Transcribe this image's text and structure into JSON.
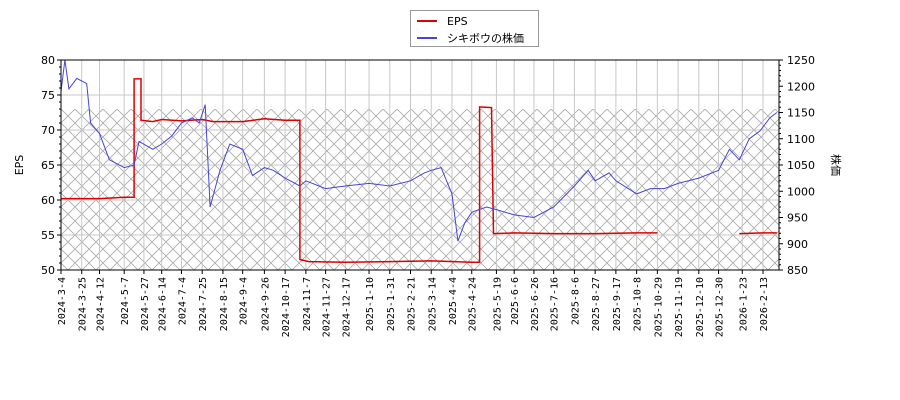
{
  "legend": {
    "items": [
      {
        "label": "EPS",
        "color": "#dd0000"
      },
      {
        "label": "シキボウの株価",
        "color": "#4444dd"
      }
    ]
  },
  "axes": {
    "left_title": "EPS",
    "right_title": "株価",
    "left_ticks": [
      "80",
      "75",
      "70",
      "65",
      "60",
      "55",
      "50"
    ],
    "right_ticks": [
      "1250",
      "1200",
      "1150",
      "1100",
      "1050",
      "1000",
      "950",
      "900",
      "850"
    ]
  },
  "chart_data": {
    "type": "line",
    "title": "",
    "xlabel": "",
    "ylabel": "EPS",
    "ylabel_right": "株価",
    "ylim": [
      50,
      80
    ],
    "ylim_right": [
      850,
      1250
    ],
    "grid": true,
    "legend_position": "top-center",
    "x_tick_labels": [
      "2024-3-4",
      "2024-3-25",
      "2024-4-12",
      "2024-5-7",
      "2024-5-27",
      "2024-6-14",
      "2024-7-4",
      "2024-7-25",
      "2024-8-15",
      "2024-9-4",
      "2024-9-26",
      "2024-10-17",
      "2024-11-7",
      "2024-11-27",
      "2024-12-17",
      "2025-1-10",
      "2025-1-31",
      "2025-2-21",
      "2025-3-14",
      "2025-4-4",
      "2025-4-24",
      "2025-5-19",
      "2025-6-6",
      "2025-6-26",
      "2025-7-16",
      "2025-8-6",
      "2025-8-27",
      "2025-9-17",
      "2025-10-8",
      "2025-10-29",
      "2025-11-19",
      "2025-12-10",
      "2025-12-30",
      "2026-1-23",
      "2026-2-13"
    ],
    "series": [
      {
        "name": "EPS",
        "axis": "left",
        "color": "#dd0000",
        "points": [
          [
            "2024-3-4",
            60.2
          ],
          [
            "2024-4-12",
            60.2
          ],
          [
            "2024-5-7",
            60.4
          ],
          [
            "2024-5-17",
            60.4
          ],
          [
            "2024-5-17",
            77.3
          ],
          [
            "2024-5-24",
            77.3
          ],
          [
            "2024-5-24",
            71.4
          ],
          [
            "2024-6-5",
            71.2
          ],
          [
            "2024-6-14",
            71.5
          ],
          [
            "2024-7-4",
            71.3
          ],
          [
            "2024-7-25",
            71.5
          ],
          [
            "2024-8-5",
            71.2
          ],
          [
            "2024-9-4",
            71.2
          ],
          [
            "2024-9-26",
            71.6
          ],
          [
            "2024-10-17",
            71.4
          ],
          [
            "2024-11-1",
            71.4
          ],
          [
            "2024-11-1",
            51.5
          ],
          [
            "2024-11-10",
            51.2
          ],
          [
            "2024-12-17",
            51.1
          ],
          [
            "2025-1-31",
            51.2
          ],
          [
            "2025-3-14",
            51.3
          ],
          [
            "2025-4-24",
            51.1
          ],
          [
            "2025-5-2",
            51.1
          ],
          [
            "2025-5-2",
            73.3
          ],
          [
            "2025-5-14",
            73.2
          ],
          [
            "2025-5-16",
            55.2
          ],
          [
            "2025-6-6",
            55.3
          ],
          [
            "2025-7-16",
            55.2
          ],
          [
            "2025-8-27",
            55.2
          ],
          [
            "2025-10-8",
            55.3
          ],
          [
            "2025-10-29",
            55.3
          ],
          [
            "2026-1-20",
            55.2
          ],
          [
            "2026-2-13",
            55.3
          ],
          [
            "2026-2-27",
            55.3
          ]
        ]
      },
      {
        "name": "シキボウの株価",
        "axis": "right",
        "color": "#4444dd",
        "points": [
          [
            "2024-3-4",
            1190
          ],
          [
            "2024-3-8",
            1250
          ],
          [
            "2024-3-12",
            1195
          ],
          [
            "2024-3-20",
            1215
          ],
          [
            "2024-3-30",
            1205
          ],
          [
            "2024-4-3",
            1130
          ],
          [
            "2024-4-12",
            1110
          ],
          [
            "2024-4-22",
            1060
          ],
          [
            "2024-5-7",
            1045
          ],
          [
            "2024-5-17",
            1050
          ],
          [
            "2024-5-22",
            1095
          ],
          [
            "2024-6-5",
            1080
          ],
          [
            "2024-6-14",
            1090
          ],
          [
            "2024-6-24",
            1105
          ],
          [
            "2024-7-4",
            1130
          ],
          [
            "2024-7-15",
            1140
          ],
          [
            "2024-7-22",
            1130
          ],
          [
            "2024-7-28",
            1165
          ],
          [
            "2024-8-2",
            970
          ],
          [
            "2024-8-12",
            1040
          ],
          [
            "2024-8-22",
            1090
          ],
          [
            "2024-9-4",
            1080
          ],
          [
            "2024-9-14",
            1030
          ],
          [
            "2024-9-26",
            1045
          ],
          [
            "2024-10-5",
            1040
          ],
          [
            "2024-10-17",
            1025
          ],
          [
            "2024-11-1",
            1010
          ],
          [
            "2024-11-7",
            1020
          ],
          [
            "2024-11-27",
            1005
          ],
          [
            "2024-12-17",
            1010
          ],
          [
            "2025-1-10",
            1015
          ],
          [
            "2025-1-31",
            1010
          ],
          [
            "2025-2-21",
            1020
          ],
          [
            "2025-3-7",
            1035
          ],
          [
            "2025-3-14",
            1040
          ],
          [
            "2025-3-24",
            1045
          ],
          [
            "2025-4-4",
            995
          ],
          [
            "2025-4-10",
            905
          ],
          [
            "2025-4-17",
            940
          ],
          [
            "2025-4-24",
            960
          ],
          [
            "2025-5-9",
            970
          ],
          [
            "2025-5-19",
            965
          ],
          [
            "2025-6-6",
            955
          ],
          [
            "2025-6-26",
            950
          ],
          [
            "2025-7-16",
            970
          ],
          [
            "2025-8-6",
            1010
          ],
          [
            "2025-8-20",
            1040
          ],
          [
            "2025-8-27",
            1020
          ],
          [
            "2025-9-10",
            1035
          ],
          [
            "2025-9-17",
            1020
          ],
          [
            "2025-10-8",
            995
          ],
          [
            "2025-10-22",
            1005
          ],
          [
            "2025-11-5",
            1005
          ],
          [
            "2025-11-19",
            1015
          ],
          [
            "2025-12-10",
            1025
          ],
          [
            "2025-12-30",
            1040
          ],
          [
            "2026-1-10",
            1080
          ],
          [
            "2026-1-20",
            1060
          ],
          [
            "2026-1-30",
            1100
          ],
          [
            "2026-2-10",
            1115
          ],
          [
            "2026-2-20",
            1140
          ],
          [
            "2026-2-27",
            1150
          ]
        ]
      }
    ],
    "shaded_region": {
      "y_from_eps": 50,
      "y_to_eps": 73,
      "style": "crosshatch"
    }
  }
}
